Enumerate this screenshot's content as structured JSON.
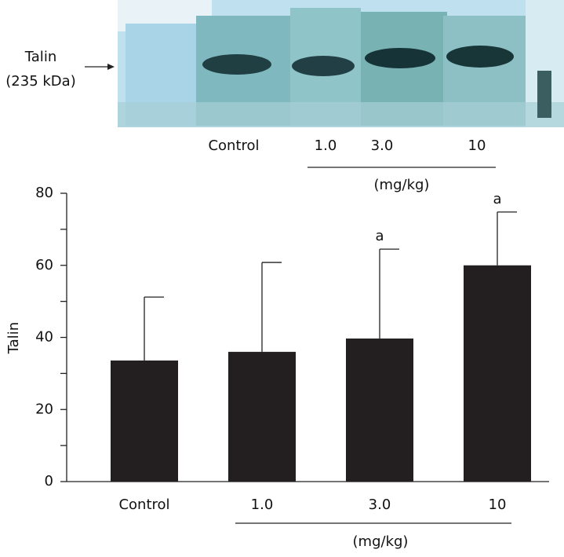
{
  "blot": {
    "protein": "Talin",
    "size": "(235 kDa)",
    "lanes": [
      "Control",
      "1.0",
      "3.0",
      "10"
    ],
    "group_label": "(mg/kg)"
  },
  "chart_data": {
    "type": "bar",
    "y_label": "Talin",
    "categories": [
      "Control",
      "1.0",
      "3.0",
      "10"
    ],
    "values": [
      33.6,
      36.0,
      39.7,
      60.0
    ],
    "errors": [
      17.6,
      24.8,
      24.8,
      14.8
    ],
    "annotations": [
      null,
      null,
      "a",
      "a"
    ],
    "group_label": "(mg/kg)",
    "color": "#231f20",
    "ylim": [
      0,
      80
    ],
    "yticks": [
      0,
      20,
      40,
      60,
      80
    ],
    "yminor_ticks": [
      10,
      30,
      50,
      70
    ]
  }
}
